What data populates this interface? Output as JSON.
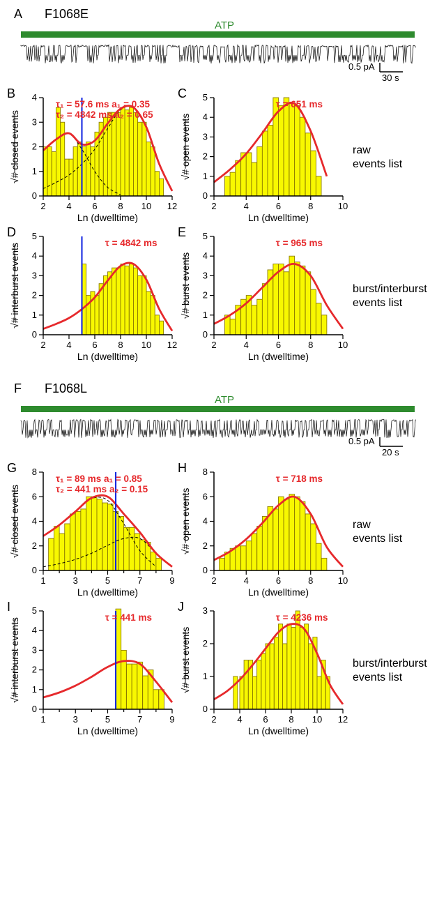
{
  "colors": {
    "bar_fill": "#f8f800",
    "bar_stroke": "#8b7b00",
    "fit_line": "#e6292c",
    "dashed_line": "#000000",
    "vline": "#0b1fe0",
    "axis": "#000000",
    "atp": "#2e8b2e",
    "trace": "#000000",
    "text": "#000000"
  },
  "panelA": {
    "label": "A",
    "title": "F1068E",
    "atp_text": "ATP",
    "scale_y": "0.5 pA",
    "scale_x": "30 s"
  },
  "panelB": {
    "label": "B",
    "type": "histogram",
    "xlabel": "Ln (dwelltime)",
    "ylabel": "√# closed events",
    "xlim": [
      2,
      12
    ],
    "xtick_step": 2,
    "ylim": [
      0,
      4
    ],
    "ytick_step": 1,
    "bars": {
      "x": [
        2.0,
        2.33,
        2.67,
        3.0,
        3.33,
        3.67,
        4.0,
        4.33,
        4.67,
        5.0,
        5.33,
        5.67,
        6.0,
        6.33,
        6.67,
        7.0,
        7.33,
        7.67,
        8.0,
        8.33,
        8.67,
        9.0,
        9.33,
        9.67,
        10.0,
        10.33,
        10.67,
        11.0
      ],
      "y": [
        2.0,
        2.0,
        1.8,
        3.6,
        3.0,
        1.5,
        1.5,
        2.0,
        2.2,
        2.0,
        2.2,
        2.0,
        2.6,
        3.0,
        3.2,
        3.4,
        3.4,
        3.4,
        3.6,
        3.5,
        3.6,
        3.4,
        3.0,
        3.0,
        2.2,
        2.0,
        1.0,
        0.7
      ],
      "width": 0.33
    },
    "fit": {
      "x": [
        2,
        3,
        4,
        5,
        6,
        7,
        8,
        9,
        10,
        11,
        12
      ],
      "y": [
        1.85,
        2.3,
        2.55,
        2.1,
        2.25,
        2.95,
        3.55,
        3.6,
        2.8,
        1.3,
        0.2
      ]
    },
    "dashed1": {
      "x": [
        2,
        3,
        4,
        5,
        6,
        7,
        8
      ],
      "y": [
        1.85,
        2.3,
        2.55,
        1.9,
        1.0,
        0.35,
        0.05
      ]
    },
    "dashed2": {
      "x": [
        2,
        3,
        4,
        5,
        6,
        7,
        8,
        9,
        10,
        11,
        12
      ],
      "y": [
        0.3,
        0.55,
        0.85,
        1.3,
        1.9,
        2.75,
        3.5,
        3.6,
        2.8,
        1.3,
        0.2
      ]
    },
    "vline": 5.0,
    "tau_lines": [
      "τ₁ = 57.6 ms      a₁ = 0.35",
      "τ₂ = 4842 ms     a₂ = 0.65"
    ]
  },
  "panelC": {
    "label": "C",
    "type": "histogram",
    "xlabel": "Ln (dwelltime)",
    "ylabel": "√# open events",
    "xlim": [
      2,
      10
    ],
    "xtick_step": 2,
    "ylim": [
      0,
      5
    ],
    "ytick_step": 1,
    "bars": {
      "x": [
        2.67,
        3.0,
        3.33,
        3.67,
        4.0,
        4.33,
        4.67,
        5.0,
        5.33,
        5.67,
        6.0,
        6.33,
        6.67,
        7.0,
        7.33,
        7.67,
        8.0,
        8.33
      ],
      "y": [
        1.0,
        1.2,
        1.8,
        2.2,
        2.2,
        1.7,
        2.5,
        3.3,
        3.6,
        5.0,
        4.6,
        5.0,
        4.7,
        4.6,
        4.0,
        3.2,
        2.3,
        1.0
      ],
      "width": 0.33
    },
    "fit": {
      "x": [
        2,
        3,
        4,
        5,
        6,
        7,
        8,
        9
      ],
      "y": [
        0.7,
        1.35,
        2.15,
        3.2,
        4.3,
        4.7,
        3.3,
        1.0
      ]
    },
    "tau_lines": [
      "τ = 651 ms"
    ]
  },
  "side_BC": {
    "line1": "raw",
    "line2": "events list"
  },
  "panelD": {
    "label": "D",
    "type": "histogram",
    "xlabel": "Ln (dwelltime)",
    "ylabel": "√# interburst events",
    "xlim": [
      2,
      12
    ],
    "xtick_step": 2,
    "ylim": [
      0,
      5
    ],
    "ytick_step": 1,
    "bars": {
      "x": [
        5.0,
        5.33,
        5.67,
        6.0,
        6.33,
        6.67,
        7.0,
        7.33,
        7.67,
        8.0,
        8.33,
        8.67,
        9.0,
        9.33,
        9.67,
        10.0,
        10.33,
        10.67,
        11.0
      ],
      "y": [
        3.6,
        2.0,
        2.2,
        2.0,
        2.6,
        3.0,
        3.2,
        3.4,
        3.4,
        3.6,
        3.5,
        3.6,
        3.4,
        3.0,
        3.0,
        2.2,
        2.0,
        1.0,
        0.7
      ],
      "width": 0.33
    },
    "fit": {
      "x": [
        2,
        3,
        4,
        5,
        6,
        7,
        8,
        9,
        10,
        11,
        12
      ],
      "y": [
        0.3,
        0.55,
        0.85,
        1.3,
        1.9,
        2.75,
        3.5,
        3.6,
        2.8,
        1.3,
        0.2
      ]
    },
    "vline": 5.0,
    "tau_lines": [
      "τ = 4842 ms"
    ]
  },
  "panelE": {
    "label": "E",
    "type": "histogram",
    "xlabel": "Ln (dwelltime)",
    "ylabel": "√# burst events",
    "xlim": [
      2,
      10
    ],
    "xtick_step": 2,
    "ylim": [
      0,
      5
    ],
    "ytick_step": 1,
    "bars": {
      "x": [
        2.67,
        3.0,
        3.33,
        3.67,
        4.0,
        4.33,
        4.67,
        5.0,
        5.33,
        5.67,
        6.0,
        6.33,
        6.67,
        7.0,
        7.33,
        7.67,
        8.0,
        8.33,
        8.67
      ],
      "y": [
        1.0,
        0.8,
        1.5,
        1.8,
        2.0,
        1.5,
        1.8,
        2.6,
        3.3,
        3.6,
        3.6,
        3.2,
        4.0,
        3.7,
        3.5,
        3.2,
        2.3,
        1.6,
        1.0
      ],
      "width": 0.33
    },
    "fit": {
      "x": [
        2,
        3,
        4,
        5,
        6,
        7,
        8,
        9,
        10
      ],
      "y": [
        0.55,
        1.0,
        1.6,
        2.4,
        3.2,
        3.6,
        3.0,
        1.5,
        0.3
      ]
    },
    "tau_lines": [
      "τ = 965 ms"
    ]
  },
  "side_DE": {
    "line1": "burst/interburst",
    "line2": "events list"
  },
  "panelF": {
    "label": "F",
    "title": "F1068L",
    "atp_text": "ATP",
    "scale_y": "0.5 pA",
    "scale_x": "20 s"
  },
  "panelG": {
    "label": "G",
    "type": "histogram",
    "xlabel": "Ln (dwelltime)",
    "ylabel": "√# closed events",
    "xlim": [
      1,
      9
    ],
    "xtick_step": 1,
    "xtick_label_step": 2,
    "ylim": [
      0,
      8
    ],
    "ytick_step": 2,
    "bars": {
      "x": [
        1.33,
        1.67,
        2.0,
        2.33,
        2.67,
        3.0,
        3.33,
        3.67,
        4.0,
        4.33,
        4.67,
        5.0,
        5.33,
        5.67,
        6.0,
        6.33,
        6.67,
        7.0,
        7.33,
        7.67,
        8.0
      ],
      "y": [
        2.6,
        3.6,
        3.0,
        3.8,
        4.6,
        4.8,
        5.0,
        6.0,
        6.0,
        5.8,
        5.5,
        5.4,
        4.8,
        4.4,
        3.5,
        3.5,
        3.0,
        2.5,
        2.3,
        1.5,
        1.0
      ],
      "width": 0.33
    },
    "fit": {
      "x": [
        1,
        2,
        3,
        4,
        5,
        6,
        7,
        8,
        9
      ],
      "y": [
        2.8,
        3.7,
        4.8,
        5.9,
        6.0,
        4.6,
        3.1,
        1.4,
        0.3
      ]
    },
    "dashed1": {
      "x": [
        1,
        2,
        3,
        4,
        5,
        6,
        7,
        8
      ],
      "y": [
        2.8,
        3.7,
        4.75,
        5.85,
        5.7,
        3.8,
        1.6,
        0.3
      ]
    },
    "dashed2": {
      "x": [
        1,
        2,
        3,
        4,
        5,
        6,
        7,
        8,
        9
      ],
      "y": [
        0.3,
        0.55,
        0.9,
        1.4,
        2.05,
        2.6,
        2.6,
        1.4,
        0.3
      ]
    },
    "vline": 5.5,
    "tau_lines": [
      "τ₁ = 89 ms         a₁ = 0.85",
      "τ₂ = 441 ms       a₂ = 0.15"
    ]
  },
  "panelH": {
    "label": "H",
    "type": "histogram",
    "xlabel": "Ln (dwelltime)",
    "ylabel": "√# open events",
    "xlim": [
      2,
      10
    ],
    "xtick_step": 2,
    "ylim": [
      0,
      8
    ],
    "ytick_step": 2,
    "bars": {
      "x": [
        2.33,
        2.67,
        3.0,
        3.33,
        3.67,
        4.0,
        4.33,
        4.67,
        5.0,
        5.33,
        5.67,
        6.0,
        6.33,
        6.67,
        7.0,
        7.33,
        7.67,
        8.0,
        8.33,
        8.67
      ],
      "y": [
        1.0,
        1.5,
        1.8,
        2.0,
        2.0,
        2.4,
        3.0,
        3.6,
        4.4,
        5.2,
        5.0,
        6.0,
        5.8,
        6.2,
        6.0,
        5.6,
        4.6,
        3.8,
        2.2,
        1.0
      ],
      "width": 0.33
    },
    "fit": {
      "x": [
        2,
        3,
        4,
        5,
        6,
        7,
        8,
        9,
        10
      ],
      "y": [
        0.85,
        1.55,
        2.55,
        3.85,
        5.3,
        6.0,
        4.6,
        1.9,
        0.3
      ]
    },
    "tau_lines": [
      "τ = 718 ms"
    ]
  },
  "side_GH": {
    "line1": "raw",
    "line2": "events list"
  },
  "panelI": {
    "label": "I",
    "type": "histogram",
    "xlabel": "Ln (dwelltime)",
    "ylabel": "√# interburst events",
    "xlim": [
      1,
      9
    ],
    "xtick_step": 1,
    "xtick_label_step": 2,
    "ylim": [
      0,
      5
    ],
    "ytick_step": 1,
    "bars": {
      "x": [
        5.5,
        5.83,
        6.17,
        6.5,
        6.83,
        7.17,
        7.5,
        7.83,
        8.17
      ],
      "y": [
        5.1,
        3.0,
        2.3,
        2.3,
        2.4,
        1.7,
        2.0,
        1.0,
        1.0
      ],
      "width": 0.33
    },
    "fit": {
      "x": [
        1,
        2,
        3,
        4,
        5,
        6,
        7,
        8,
        9
      ],
      "y": [
        0.6,
        0.85,
        1.2,
        1.65,
        2.15,
        2.45,
        2.3,
        1.4,
        0.35
      ]
    },
    "vline": 5.5,
    "tau_lines": [
      "τ = 441 ms"
    ]
  },
  "panelJ": {
    "label": "J",
    "type": "histogram",
    "xlabel": "Ln (dwelltime)",
    "ylabel": "√# burst events",
    "xlim": [
      2,
      12
    ],
    "xtick_step": 2,
    "ylim": [
      0,
      3
    ],
    "ytick_step": 1,
    "bars": {
      "x": [
        3.5,
        4.0,
        4.33,
        4.67,
        5.0,
        5.33,
        5.67,
        6.0,
        6.33,
        6.67,
        7.0,
        7.33,
        7.67,
        8.0,
        8.33,
        8.67,
        9.0,
        9.33,
        9.67,
        10.0,
        10.33,
        10.67
      ],
      "y": [
        1.0,
        1.0,
        1.5,
        1.5,
        1.0,
        1.5,
        1.7,
        2.0,
        2.0,
        2.2,
        2.6,
        2.0,
        2.6,
        2.5,
        3.0,
        2.5,
        2.6,
        2.0,
        2.2,
        1.0,
        1.5,
        1.0
      ],
      "width": 0.33
    },
    "fit": {
      "x": [
        2,
        3,
        4,
        5,
        6,
        7,
        8,
        9,
        10,
        11,
        12
      ],
      "y": [
        0.3,
        0.55,
        0.9,
        1.35,
        1.85,
        2.35,
        2.6,
        2.45,
        1.7,
        0.75,
        0.15
      ]
    },
    "tau_lines": [
      "τ = 4236 ms"
    ]
  },
  "side_IJ": {
    "line1": "burst/interburst",
    "line2": "events list"
  }
}
